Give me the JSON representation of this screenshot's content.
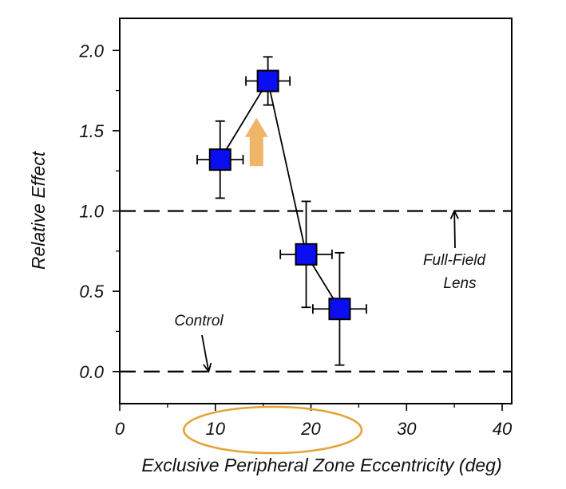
{
  "chart_data": {
    "type": "scatter",
    "xlabel": "Exclusive Peripheral Zone Eccentricity (deg)",
    "ylabel": "Relative Effect",
    "xlim": [
      0,
      41
    ],
    "ylim": [
      -0.2,
      2.2
    ],
    "x_ticks": [
      0,
      10,
      20,
      30,
      40
    ],
    "x_tick_labels": [
      "0",
      "10",
      "20",
      "30",
      "40"
    ],
    "y_ticks": [
      0.0,
      0.5,
      1.0,
      1.5,
      2.0
    ],
    "y_tick_labels": [
      "0.0",
      "0.5",
      "1.0",
      "1.5",
      "2.0"
    ],
    "grid": false,
    "series": [
      {
        "marker": "square",
        "color": "#0a0ef0",
        "connected": true,
        "points": [
          {
            "x": 10.5,
            "y": 1.32,
            "xerr": 2.4,
            "yerr": 0.24
          },
          {
            "x": 15.5,
            "y": 1.81,
            "xerr": 2.3,
            "yerr": 0.15
          },
          {
            "x": 19.5,
            "y": 0.73,
            "xerr": 2.7,
            "yerr": 0.33
          },
          {
            "x": 23.0,
            "y": 0.39,
            "xerr": 2.8,
            "yerr": 0.35
          }
        ]
      }
    ],
    "reference_lines": [
      {
        "y": 1.0,
        "style": "dashed"
      },
      {
        "y": 0.0,
        "style": "dashed"
      }
    ],
    "annotations": [
      {
        "text": "Control",
        "arrow_to": {
          "x": 9.3,
          "y": 0.0
        }
      },
      {
        "text_lines": [
          "Full-Field",
          "Lens"
        ],
        "arrow_to": {
          "x": 35.0,
          "y": 1.0
        }
      }
    ],
    "highlights": [
      {
        "shape": "up-arrow",
        "color": "#f1b56a",
        "x": 14.3,
        "y_from": 1.28,
        "y_to": 1.58
      },
      {
        "shape": "ellipse",
        "color": "#e4a33a",
        "x_center": 16.0,
        "x_halfwidth": 9.3,
        "around": "x-axis tick labels 10–20"
      }
    ]
  }
}
